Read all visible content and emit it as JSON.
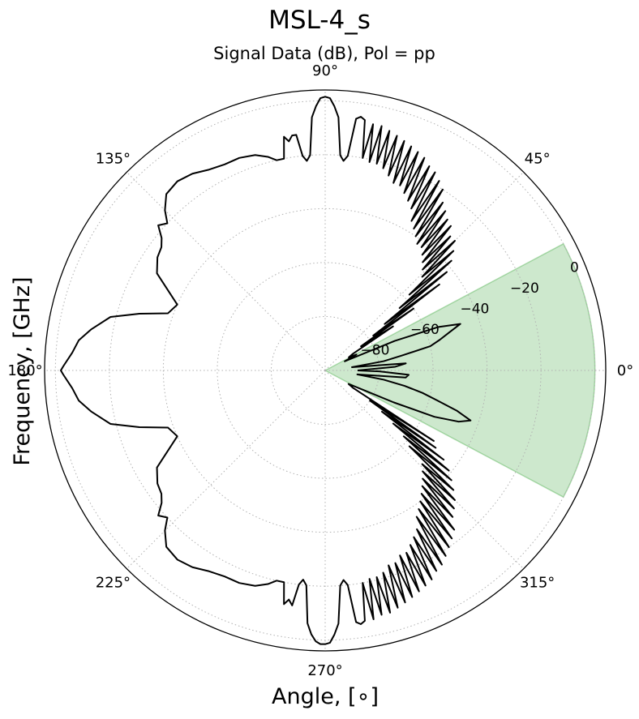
{
  "chart_data": {
    "type": "polar-line",
    "title": "MSL-4_s",
    "subtitle": "Signal Data (dB), Pol = pp",
    "xlabel": "Angle, [$^{\\circ}$]",
    "xlabel_display": "Angle, [∘]",
    "ylabel": "Frequency, [GHz]",
    "angle_ticks": [
      {
        "deg": 0,
        "label": "0°"
      },
      {
        "deg": 45,
        "label": "45°"
      },
      {
        "deg": 90,
        "label": "90°"
      },
      {
        "deg": 135,
        "label": "135°"
      },
      {
        "deg": 180,
        "label": "180°"
      },
      {
        "deg": 225,
        "label": "225°"
      },
      {
        "deg": 270,
        "label": "270°"
      },
      {
        "deg": 315,
        "label": "315°"
      }
    ],
    "radial_ticks": [
      {
        "value": -80,
        "label": "−80"
      },
      {
        "value": -60,
        "label": "−60"
      },
      {
        "value": -40,
        "label": "−40"
      },
      {
        "value": -20,
        "label": "−20"
      },
      {
        "value": 0,
        "label": "0"
      }
    ],
    "rlim": [
      -100,
      4
    ],
    "radial_label_angle_deg": 22.5,
    "grid": true,
    "highlight_sector": {
      "theta_start": -28,
      "theta_end": 28,
      "r_max": 0,
      "color": "#2ca02c",
      "alpha": 0.24
    },
    "series": [
      {
        "color": "#000000",
        "points": [
          [
            0,
            -88
          ],
          [
            3,
            -74
          ],
          [
            5,
            -70
          ],
          [
            7,
            -90
          ],
          [
            9,
            -78
          ],
          [
            11,
            -71
          ],
          [
            13,
            -60
          ],
          [
            15,
            -56
          ],
          [
            17,
            -52
          ],
          [
            19,
            -47
          ],
          [
            21,
            -55
          ],
          [
            23,
            -72
          ],
          [
            25,
            -92
          ],
          [
            27,
            -87
          ],
          [
            29,
            -90
          ],
          [
            31,
            -88
          ],
          [
            33,
            -70
          ],
          [
            34,
            -84
          ],
          [
            35,
            -60
          ],
          [
            36,
            -78
          ],
          [
            37,
            -47
          ],
          [
            38,
            -72
          ],
          [
            39,
            -42
          ],
          [
            40,
            -64
          ],
          [
            41,
            -38
          ],
          [
            42,
            -58
          ],
          [
            43,
            -35
          ],
          [
            44,
            -50
          ],
          [
            45,
            -32
          ],
          [
            46,
            -48
          ],
          [
            47,
            -32
          ],
          [
            48,
            -46
          ],
          [
            49,
            -29
          ],
          [
            50,
            -44
          ],
          [
            51,
            -28
          ],
          [
            52,
            -42
          ],
          [
            53,
            -26
          ],
          [
            54,
            -42
          ],
          [
            55,
            -24
          ],
          [
            56,
            -40
          ],
          [
            57,
            -20
          ],
          [
            58,
            -38
          ],
          [
            59,
            -18
          ],
          [
            60,
            -36
          ],
          [
            61,
            -16
          ],
          [
            62,
            -32
          ],
          [
            63,
            -15
          ],
          [
            64,
            -30
          ],
          [
            65,
            -13
          ],
          [
            66,
            -28
          ],
          [
            67,
            -12
          ],
          [
            68,
            -26
          ],
          [
            69,
            -11
          ],
          [
            70,
            -26
          ],
          [
            71,
            -10
          ],
          [
            72,
            -24
          ],
          [
            73,
            -9
          ],
          [
            74,
            -22
          ],
          [
            75,
            -8
          ],
          [
            76,
            -21
          ],
          [
            77,
            -7
          ],
          [
            78,
            -21
          ],
          [
            79,
            -7
          ],
          [
            80,
            -20
          ],
          [
            81,
            -6
          ],
          [
            82,
            -5
          ],
          [
            83,
            -6
          ],
          [
            84,
            -20
          ],
          [
            85,
            -22
          ],
          [
            86,
            -20
          ],
          [
            87,
            -6
          ],
          [
            88,
            -2
          ],
          [
            89,
            1
          ],
          [
            90,
            1.5
          ],
          [
            91,
            1
          ],
          [
            92,
            -2
          ],
          [
            93,
            -6
          ],
          [
            94,
            -20
          ],
          [
            95,
            -22
          ],
          [
            96,
            -20
          ],
          [
            97,
            -12
          ],
          [
            98,
            -12
          ],
          [
            99,
            -14
          ],
          [
            100,
            -12
          ],
          [
            101,
            -20
          ],
          [
            103,
            -20
          ],
          [
            105,
            -18
          ],
          [
            108,
            -16
          ],
          [
            112,
            -15
          ],
          [
            116,
            -15
          ],
          [
            120,
            -14
          ],
          [
            124,
            -12
          ],
          [
            128,
            -11
          ],
          [
            132,
            -12
          ],
          [
            135,
            -16
          ],
          [
            137,
            -20
          ],
          [
            139,
            -18
          ],
          [
            141,
            -22
          ],
          [
            143,
            -24
          ],
          [
            146,
            -25
          ],
          [
            150,
            -28
          ],
          [
            156,
            -40
          ],
          [
            160,
            -38
          ],
          [
            163,
            -28
          ],
          [
            166,
            -18
          ],
          [
            170,
            -12
          ],
          [
            173,
            -8
          ],
          [
            176,
            -6
          ],
          [
            179,
            -3
          ],
          [
            180,
            -2
          ],
          [
            181,
            -3
          ],
          [
            184,
            -6
          ],
          [
            187,
            -8
          ],
          [
            190,
            -12
          ],
          [
            194,
            -18
          ],
          [
            197,
            -28
          ],
          [
            200,
            -38
          ],
          [
            204,
            -40
          ],
          [
            210,
            -28
          ],
          [
            214,
            -25
          ],
          [
            217,
            -24
          ],
          [
            219,
            -22
          ],
          [
            221,
            -18
          ],
          [
            223,
            -20
          ],
          [
            225,
            -16
          ],
          [
            228,
            -12
          ],
          [
            232,
            -11
          ],
          [
            236,
            -12
          ],
          [
            240,
            -14
          ],
          [
            244,
            -15
          ],
          [
            248,
            -15
          ],
          [
            252,
            -16
          ],
          [
            255,
            -18
          ],
          [
            257,
            -20
          ],
          [
            259,
            -20
          ],
          [
            260,
            -12
          ],
          [
            261,
            -14
          ],
          [
            262,
            -12
          ],
          [
            263,
            -20
          ],
          [
            264,
            -22
          ],
          [
            265,
            -20
          ],
          [
            266,
            -6
          ],
          [
            267,
            -2
          ],
          [
            268,
            0.5
          ],
          [
            269,
            1.5
          ],
          [
            270,
            1.5
          ],
          [
            271,
            1
          ],
          [
            272,
            -2
          ],
          [
            273,
            -6
          ],
          [
            274,
            -20
          ],
          [
            275,
            -22
          ],
          [
            276,
            -20
          ],
          [
            277,
            -6
          ],
          [
            278,
            -5
          ],
          [
            279,
            -6
          ],
          [
            280,
            -20
          ],
          [
            281,
            -6
          ],
          [
            282,
            -21
          ],
          [
            283,
            -7
          ],
          [
            284,
            -21
          ],
          [
            285,
            -7
          ],
          [
            286,
            -22
          ],
          [
            287,
            -8
          ],
          [
            288,
            -24
          ],
          [
            289,
            -9
          ],
          [
            290,
            -24
          ],
          [
            291,
            -10
          ],
          [
            292,
            -26
          ],
          [
            293,
            -11
          ],
          [
            294,
            -26
          ],
          [
            295,
            -12
          ],
          [
            296,
            -28
          ],
          [
            297,
            -13
          ],
          [
            298,
            -30
          ],
          [
            299,
            -15
          ],
          [
            300,
            -32
          ],
          [
            301,
            -16
          ],
          [
            302,
            -36
          ],
          [
            303,
            -18
          ],
          [
            304,
            -38
          ],
          [
            305,
            -20
          ],
          [
            306,
            -40
          ],
          [
            307,
            -22
          ],
          [
            308,
            -42
          ],
          [
            309,
            -24
          ],
          [
            310,
            -44
          ],
          [
            311,
            -28
          ],
          [
            312,
            -46
          ],
          [
            313,
            -30
          ],
          [
            314,
            -48
          ],
          [
            315,
            -32
          ],
          [
            316,
            -50
          ],
          [
            317,
            -35
          ],
          [
            318,
            -58
          ],
          [
            319,
            -38
          ],
          [
            320,
            -62
          ],
          [
            321,
            -41
          ],
          [
            322,
            -68
          ],
          [
            323,
            -45
          ],
          [
            324,
            -74
          ],
          [
            325,
            -50
          ],
          [
            326,
            -80
          ],
          [
            327,
            -52
          ],
          [
            328,
            -88
          ],
          [
            330,
            -90
          ],
          [
            333,
            -84
          ],
          [
            335,
            -72
          ],
          [
            337,
            -56
          ],
          [
            339,
            -47
          ],
          [
            341,
            -43
          ],
          [
            343,
            -49
          ],
          [
            345,
            -57
          ],
          [
            347,
            -63
          ],
          [
            349,
            -70
          ],
          [
            351,
            -78
          ],
          [
            353,
            -88
          ],
          [
            355,
            -70
          ],
          [
            357,
            -69
          ],
          [
            359,
            -80
          ],
          [
            360,
            -88
          ]
        ]
      }
    ]
  }
}
